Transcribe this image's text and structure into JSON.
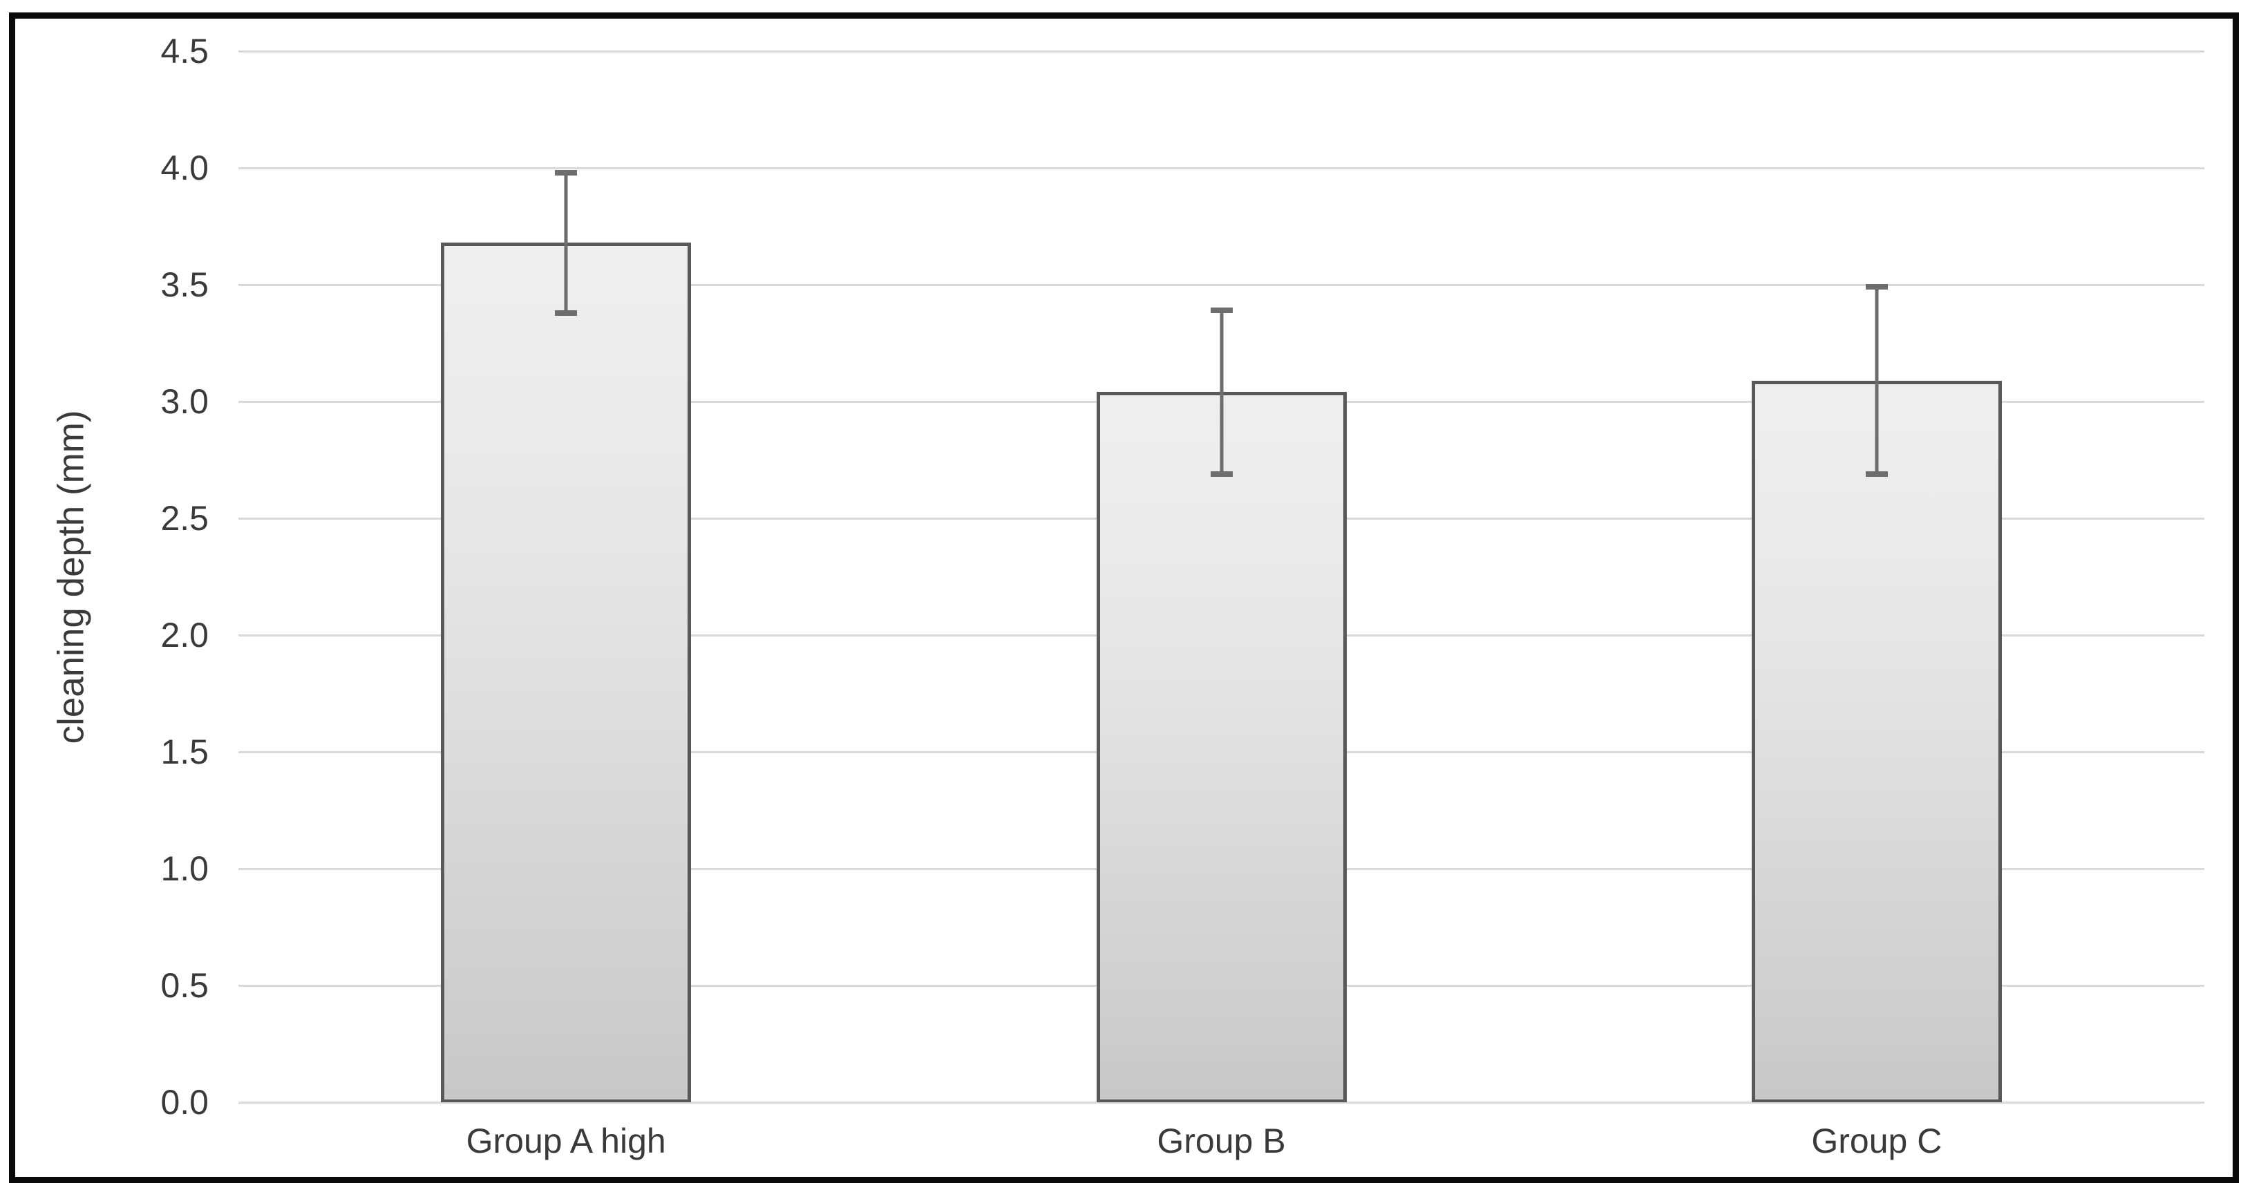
{
  "figure": {
    "background_color": "#ffffff",
    "border_color": "#0a0a0a"
  },
  "chart_data": {
    "type": "bar",
    "title": "",
    "categories": [
      "Group A high",
      "Group B",
      "Group C"
    ],
    "values": [
      3.68,
      3.04,
      3.09
    ],
    "errors": [
      0.3,
      0.35,
      0.4
    ],
    "xlabel": "",
    "ylabel": "cleaning depth (mm)",
    "ylim": [
      0,
      4.5
    ],
    "ytick_interval": 0.5,
    "ytick_labels": [
      "0.0",
      "0.5",
      "1.0",
      "1.5",
      "2.0",
      "2.5",
      "3.0",
      "3.5",
      "4.0",
      "4.5"
    ],
    "grid": "horizontal",
    "legend": "none",
    "colors": {
      "bar_fill_top": "#efefef",
      "bar_fill_bottom": "#c8c8c8",
      "bar_border": "#595959",
      "gridline": "#d9d9d9",
      "error_bar": "#6d6d6d",
      "tick_text": "#3a3a3a"
    }
  }
}
